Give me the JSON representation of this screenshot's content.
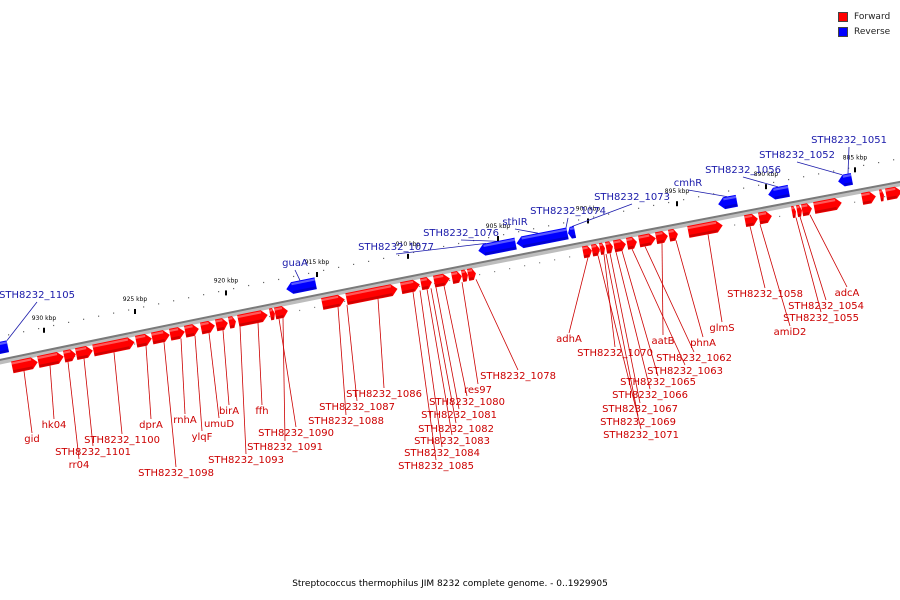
{
  "caption": "Streptococcus thermophilus JIM 8232 complete genome. - 0..1929905",
  "legend": [
    {
      "label": "Forward",
      "color": "#ff0000"
    },
    {
      "label": "Reverse",
      "color": "#0000ff"
    }
  ],
  "colors": {
    "forward": "#ff0000",
    "forward_label": "#cc0000",
    "reverse": "#0000ff",
    "reverse_label": "#1a1aaa",
    "backbone": "#7a7a7a"
  },
  "ticks": [
    "930 kbp",
    "925 kbp",
    "920 kbp",
    "915 kbp",
    "910 kbp",
    "905 kbp",
    "900 kbp",
    "895 kbp",
    "890 kbp",
    "885 kbp"
  ],
  "forward_genes": [
    "gid",
    "hk04",
    "rr04",
    "STH8232_1101",
    "STH8232_1100",
    "STH8232_1098",
    "dprA",
    "rnhA",
    "ylqF",
    "umuD",
    "birA",
    "ffh",
    "STH8232_1093",
    "STH8232_1091",
    "STH8232_1090",
    "STH8232_1088",
    "STH8232_1087",
    "STH8232_1086",
    "STH8232_1085",
    "STH8232_1084",
    "STH8232_1083",
    "STH8232_1082",
    "STH8232_1081",
    "STH8232_1080",
    "res97",
    "STH8232_1078",
    "adhA",
    "STH8232_1071",
    "STH8232_1070",
    "STH8232_1069",
    "STH8232_1067",
    "STH8232_1066",
    "STH8232_1065",
    "STH8232_1063",
    "STH8232_1062",
    "aatB",
    "phnA",
    "glmS",
    "amiD2",
    "STH8232_1058",
    "STH8232_1055",
    "STH8232_1054",
    "adcA"
  ],
  "reverse_genes": [
    "STH8232_1105",
    "guaA",
    "STH8232_1077",
    "STH8232_1076",
    "sthIR",
    "STH8232_1074",
    "STH8232_1073",
    "cmhR",
    "STH8232_1056",
    "STH8232_1052",
    "STH8232_1051"
  ]
}
